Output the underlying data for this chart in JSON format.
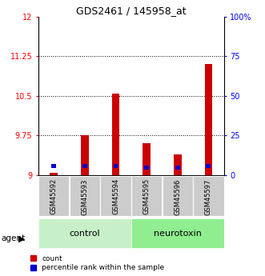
{
  "title": "GDS2461 / 145958_at",
  "samples": [
    "GSM45592",
    "GSM45593",
    "GSM45594",
    "GSM45595",
    "GSM45596",
    "GSM45597"
  ],
  "red_values": [
    9.05,
    9.75,
    10.55,
    9.6,
    9.4,
    11.1
  ],
  "red_base": 9.0,
  "ylim_left": [
    9.0,
    12.0
  ],
  "ylim_right": [
    0,
    100
  ],
  "yticks_left": [
    9.0,
    9.75,
    10.5,
    11.25,
    12.0
  ],
  "ytick_labels_left": [
    "9",
    "9.75",
    "10.5",
    "11.25",
    "12"
  ],
  "yticks_right": [
    0,
    25,
    50,
    75,
    100
  ],
  "ytick_labels_right": [
    "0",
    "25",
    "50",
    "75",
    "100%"
  ],
  "hlines": [
    9.75,
    10.5,
    11.25
  ],
  "group_colors": {
    "control": "#c8f0c8",
    "neurotoxin": "#90ee90"
  },
  "group_labels": [
    "control",
    "neurotoxin"
  ],
  "group_xranges": [
    [
      0,
      3
    ],
    [
      3,
      6
    ]
  ],
  "bar_width": 0.25,
  "red_color": "#cc0000",
  "blue_color": "#0000cc",
  "legend_red": "count",
  "legend_blue": "percentile rank within the sample",
  "blue_bar_width": 0.15,
  "blue_heights": [
    0.09,
    0.09,
    0.09,
    0.09,
    0.09,
    0.09
  ],
  "blue_tops": [
    9.13,
    9.13,
    9.13,
    9.1,
    9.1,
    9.13
  ],
  "sample_gray": "#cccccc",
  "title_fontsize": 9,
  "tick_fontsize": 7,
  "sample_fontsize": 6,
  "group_fontsize": 8,
  "legend_fontsize": 6.5
}
